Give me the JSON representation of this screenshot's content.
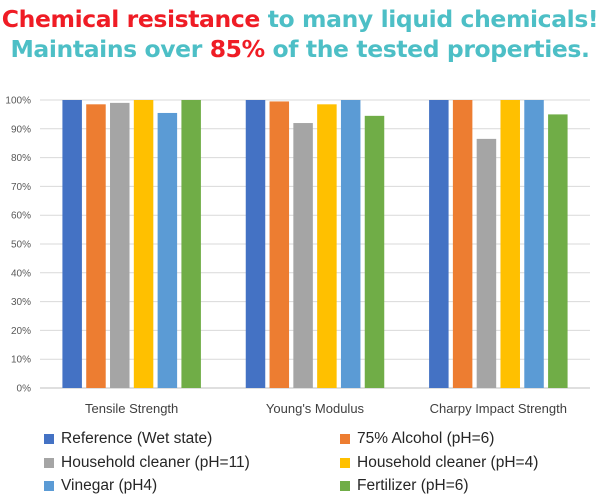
{
  "headline": {
    "line1": [
      {
        "text": "Chemical resistance",
        "color": "#ef1c25"
      },
      {
        "text": " to many liquid chemicals!",
        "color": "#4dbfc6"
      }
    ],
    "line2": [
      {
        "text": "Maintains over ",
        "color": "#4dbfc6"
      },
      {
        "text": "85%",
        "color": "#ef1c25"
      },
      {
        "text": " of the tested properties.",
        "color": "#4dbfc6"
      }
    ]
  },
  "chart_data": {
    "type": "bar",
    "title": "",
    "xlabel": "",
    "ylabel": "",
    "categories": [
      "Tensile Strength",
      "Young's Modulus",
      "Charpy Impact Strength"
    ],
    "ylim": [
      0,
      100
    ],
    "yticks": [
      "0%",
      "10%",
      "20%",
      "30%",
      "40%",
      "50%",
      "60%",
      "70%",
      "80%",
      "90%",
      "100%"
    ],
    "grid": true,
    "legend_position": "bottom",
    "series": [
      {
        "name": "Reference (Wet state)",
        "color": "#4472c4",
        "values": [
          100,
          100,
          100
        ]
      },
      {
        "name": "75% Alcohol (pH=6)",
        "color": "#ed7d31",
        "values": [
          98.5,
          99.5,
          100
        ]
      },
      {
        "name": "Household cleaner (pH=11)",
        "color": "#a5a5a5",
        "values": [
          99,
          92,
          86.5
        ]
      },
      {
        "name": "Household cleaner (pH=4)",
        "color": "#ffc000",
        "values": [
          100,
          98.5,
          100
        ]
      },
      {
        "name": "Vinegar (pH4)",
        "color": "#5b9bd5",
        "values": [
          95.5,
          100,
          100
        ]
      },
      {
        "name": "Fertilizer (pH=6)",
        "color": "#70ad47",
        "values": [
          100,
          94.5,
          95
        ]
      }
    ]
  }
}
